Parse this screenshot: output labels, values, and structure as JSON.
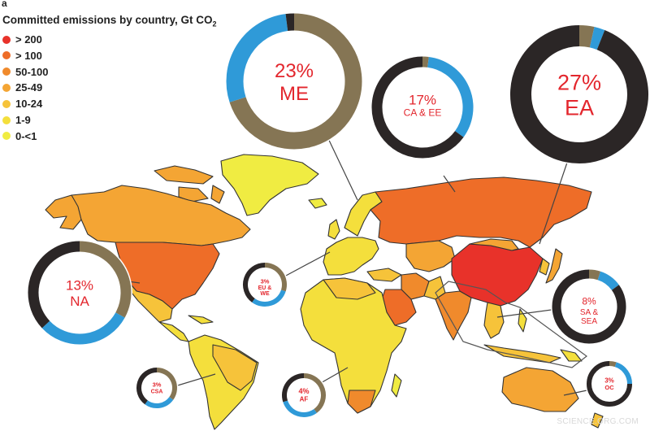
{
  "panel_letter": "a",
  "legend": {
    "title": "Committed emissions by country, Gt CO",
    "title_subscript": "2",
    "items": [
      {
        "label": "> 200",
        "color": "#e8322a"
      },
      {
        "label": "> 100",
        "color": "#ee6d28"
      },
      {
        "label": "50-100",
        "color": "#f08a2c"
      },
      {
        "label": "25-49",
        "color": "#f4a534"
      },
      {
        "label": "10-24",
        "color": "#f6c33a"
      },
      {
        "label": "1-9",
        "color": "#f4df3c"
      },
      {
        "label": "0-<1",
        "color": "#f0ec42"
      }
    ]
  },
  "donut_colors": {
    "black": "#2b2626",
    "blue": "#2f9ad8",
    "brown": "#857554",
    "label": "#e3262d"
  },
  "donuts": [
    {
      "id": "me",
      "percent": "23%",
      "region": "ME",
      "segments": {
        "brown": 0.7,
        "blue": 0.28,
        "black": 0.02
      }
    },
    {
      "id": "ea",
      "percent": "27%",
      "region": "EA",
      "segments": {
        "brown": 0.035,
        "blue": 0.025,
        "black": 0.94
      }
    },
    {
      "id": "caee",
      "percent": "17%",
      "region": "CA & EE",
      "segments": {
        "brown": 0.02,
        "blue": 0.33,
        "black": 0.65
      }
    },
    {
      "id": "na",
      "percent": "13%",
      "region": "NA",
      "segments": {
        "brown": 0.33,
        "blue": 0.3,
        "black": 0.37
      }
    },
    {
      "id": "euwe",
      "percent": "3%",
      "region": "EU & WE",
      "segments": {
        "brown": 0.3,
        "blue": 0.3,
        "black": 0.4
      }
    },
    {
      "id": "sasea",
      "percent": "8%",
      "region": "SA & SEA",
      "segments": {
        "brown": 0.05,
        "blue": 0.1,
        "black": 0.85
      }
    },
    {
      "id": "csa",
      "percent": "3%",
      "region": "CSA",
      "segments": {
        "brown": 0.35,
        "blue": 0.25,
        "black": 0.4
      }
    },
    {
      "id": "af",
      "percent": "4%",
      "region": "AF",
      "segments": {
        "brown": 0.4,
        "blue": 0.3,
        "black": 0.3
      }
    },
    {
      "id": "oc",
      "percent": "3%",
      "region": "OC",
      "segments": {
        "brown": 0.05,
        "blue": 0.2,
        "black": 0.75
      }
    }
  ],
  "watermark": "SCIENCE.ORG.COM"
}
